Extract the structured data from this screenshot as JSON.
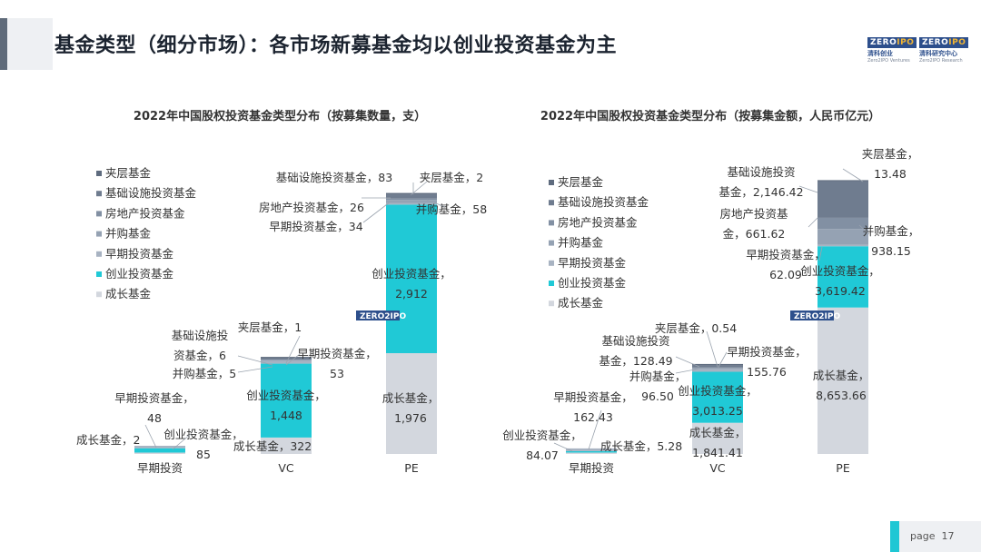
{
  "page": {
    "title": "基金类型（细分市场）：各市场新募基金均以创业投资基金为主",
    "page_label": "page",
    "page_number": "17"
  },
  "logos": {
    "venture": {
      "top": "ZERO",
      "accent": "IPO",
      "line2": "清科创业",
      "line3": "Zero2IPO Ventures"
    },
    "research": {
      "top": "ZERO",
      "accent": "IPO",
      "line2": "清科研究中心",
      "line3": "Zero2IPO Research"
    }
  },
  "colors": {
    "夹层基金": "#5e6b7e",
    "基础设施投资基金": "#6f7c8f",
    "房地产投资基金": "#8290a3",
    "并购基金": "#95a2b3",
    "早期投资基金": "#a8b3c2",
    "创业投资基金": "#20c9d6",
    "成长基金": "#d3d7de"
  },
  "legend_order": [
    "夹层基金",
    "基础设施投资基金",
    "房地产投资基金",
    "并购基金",
    "早期投资基金",
    "创业投资基金",
    "成长基金"
  ],
  "chart_data": [
    {
      "type": "bar",
      "stacked": true,
      "title": "2022年中国股权投资基金类型分布（按募集数量，支）",
      "categories": [
        "早期投资",
        "VC",
        "PE"
      ],
      "series": [
        {
          "name": "成长基金",
          "values": [
            2,
            322,
            1976
          ],
          "labels": [
            "成长基金，2",
            "成长基金，322",
            "成长基金，\n1,976"
          ]
        },
        {
          "name": "创业投资基金",
          "values": [
            85,
            1448,
            2912
          ],
          "labels": [
            "创业投资基金，\n85",
            "创业投资基金，\n1,448",
            "创业投资基金，\n2,912"
          ]
        },
        {
          "name": "早期投资基金",
          "values": [
            48,
            53,
            34
          ],
          "labels": [
            "早期投资基金，\n48",
            "早期投资基金，\n53",
            "早期投资基金，34"
          ]
        },
        {
          "name": "并购基金",
          "values": [
            0,
            5,
            58
          ],
          "labels": [
            "",
            "并购基金，5",
            "并购基金，58"
          ]
        },
        {
          "name": "房地产投资基金",
          "values": [
            0,
            0,
            26
          ],
          "labels": [
            "",
            "",
            "房地产投资基金，26"
          ]
        },
        {
          "name": "基础设施投资基金",
          "values": [
            0,
            6,
            83
          ],
          "labels": [
            "",
            "基础设施投\n资基金，6",
            "基础设施投资基金，83"
          ]
        },
        {
          "name": "夹层基金",
          "values": [
            0,
            1,
            2
          ],
          "labels": [
            "",
            "夹层基金，1",
            "夹层基金，2"
          ]
        }
      ]
    },
    {
      "type": "bar",
      "stacked": true,
      "title": "2022年中国股权投资基金类型分布（按募集金额，人民币亿元）",
      "categories": [
        "早期投资",
        "VC",
        "PE"
      ],
      "series": [
        {
          "name": "成长基金",
          "values": [
            5.28,
            1841.41,
            8653.66
          ],
          "labels": [
            "成长基金，5.28",
            "成长基金，\n1,841.41",
            "成长基金，\n8,653.66"
          ]
        },
        {
          "name": "创业投资基金",
          "values": [
            84.07,
            3013.25,
            3619.42
          ],
          "labels": [
            "创业投资基金，\n84.07",
            "创业投资基金，\n3,013.25",
            "创业投资基金，\n3,619.42"
          ]
        },
        {
          "name": "早期投资基金",
          "values": [
            162.43,
            155.76,
            62.09
          ],
          "labels": [
            "早期投资基金，\n162.43",
            "早期投资基金，\n155.76",
            "早期投资基金，\n62.09"
          ]
        },
        {
          "name": "并购基金",
          "values": [
            0,
            96.5,
            938.15
          ],
          "labels": [
            "",
            "并购基金，\n96.50",
            "并购基金，\n938.15"
          ]
        },
        {
          "name": "房地产投资基金",
          "values": [
            0,
            0,
            661.62
          ],
          "labels": [
            "",
            "",
            "房地产投资基\n金，661.62"
          ]
        },
        {
          "name": "基础设施投资基金",
          "values": [
            0,
            128.49,
            2146.42
          ],
          "labels": [
            "",
            "基础设施投资\n基金，128.49",
            "基础设施投资\n基金，2,146.42"
          ]
        },
        {
          "name": "夹层基金",
          "values": [
            0,
            0.54,
            13.48
          ],
          "labels": [
            "",
            "夹层基金，0.54",
            "夹层基金，\n13.48"
          ]
        }
      ]
    }
  ]
}
